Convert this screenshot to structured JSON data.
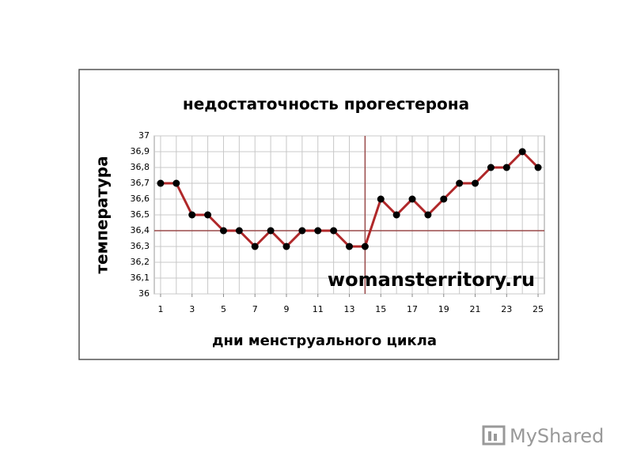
{
  "chart_data": {
    "type": "line",
    "title": "недостаточность прогестерона",
    "y_label": "температура",
    "x_label": "дни менструального цикла",
    "watermark": "womansterritory.ru",
    "footer_logo": "MyShared",
    "x": [
      1,
      2,
      3,
      4,
      5,
      6,
      7,
      8,
      9,
      10,
      11,
      12,
      13,
      14,
      15,
      16,
      17,
      18,
      19,
      20,
      21,
      22,
      23,
      24,
      25
    ],
    "series": [
      {
        "name": "температура",
        "color": "#b0282a",
        "values": [
          36.7,
          36.7,
          36.5,
          36.5,
          36.4,
          36.4,
          36.3,
          36.4,
          36.3,
          36.4,
          36.4,
          36.4,
          36.3,
          36.3,
          36.6,
          36.5,
          36.6,
          36.5,
          36.6,
          36.7,
          36.7,
          36.8,
          36.8,
          36.9,
          36.8
        ]
      }
    ],
    "marker_color": "#000000",
    "xlim": [
      0.6,
      25.4
    ],
    "xticks": [
      1,
      3,
      5,
      7,
      9,
      11,
      13,
      15,
      17,
      19,
      21,
      23,
      25
    ],
    "ylim": [
      36,
      37
    ],
    "yticks": [
      36,
      {
        "value": 36.1,
        "label": "36,1"
      },
      {
        "value": 36.2,
        "label": "36,2"
      },
      {
        "value": 36.3,
        "label": "36,3"
      },
      {
        "value": 36.4,
        "label": "36,4"
      },
      {
        "value": 36.5,
        "label": "36,5"
      },
      {
        "value": 36.6,
        "label": "36,6"
      },
      {
        "value": 36.7,
        "label": "36,7"
      },
      {
        "value": 36.8,
        "label": "36,8"
      },
      {
        "value": 36.9,
        "label": "36,9"
      },
      37
    ],
    "grid": true,
    "reference_lines": {
      "x": 14,
      "y": 36.4,
      "color": "#9a4a4a"
    }
  }
}
